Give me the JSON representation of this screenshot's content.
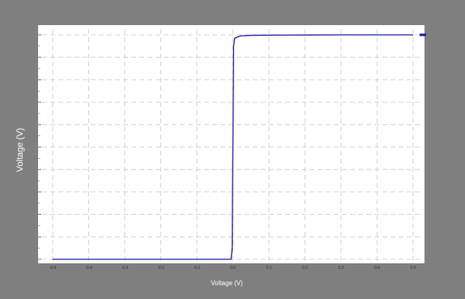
{
  "chart_data": {
    "type": "line",
    "xlabel": "Voltage (V)",
    "ylabel": "Voltage (V)",
    "xlim": [
      -0.5,
      0.5
    ],
    "ylim": [
      0,
      1
    ],
    "x_ticks": [
      -0.5,
      -0.4,
      -0.3,
      -0.2,
      -0.1,
      0.0,
      0.1,
      0.2,
      0.3,
      0.4,
      0.5
    ],
    "x_tick_labels": [
      "-0.5",
      "-0.4",
      "-0.3",
      "-0.2",
      "-0.1",
      "0.0",
      "0.1",
      "0.2",
      "0.3",
      "0.4",
      "0.5"
    ],
    "y_ticks": [
      0,
      0.1,
      0.2,
      0.3,
      0.4,
      0.5,
      0.6,
      0.7,
      0.8,
      0.9,
      1.0
    ],
    "grid": true,
    "series": [
      {
        "color": "#1a1aa8",
        "x": [
          -0.5,
          -0.35,
          -0.2,
          -0.05,
          -0.005,
          -0.002,
          0.0,
          0.002,
          0.005,
          0.02,
          0.05,
          0.15,
          0.3,
          0.45,
          0.5
        ],
        "y": [
          0.0,
          0.0,
          0.0,
          0.0,
          0.0,
          0.05,
          0.5,
          0.95,
          0.985,
          0.995,
          0.998,
          0.999,
          1.0,
          1.0,
          1.0
        ]
      }
    ]
  },
  "colors": {
    "background": "#7f7f7f",
    "plot_area": "#ffffff",
    "grid": "#c8c8c8",
    "line": "#1a1aa8"
  }
}
